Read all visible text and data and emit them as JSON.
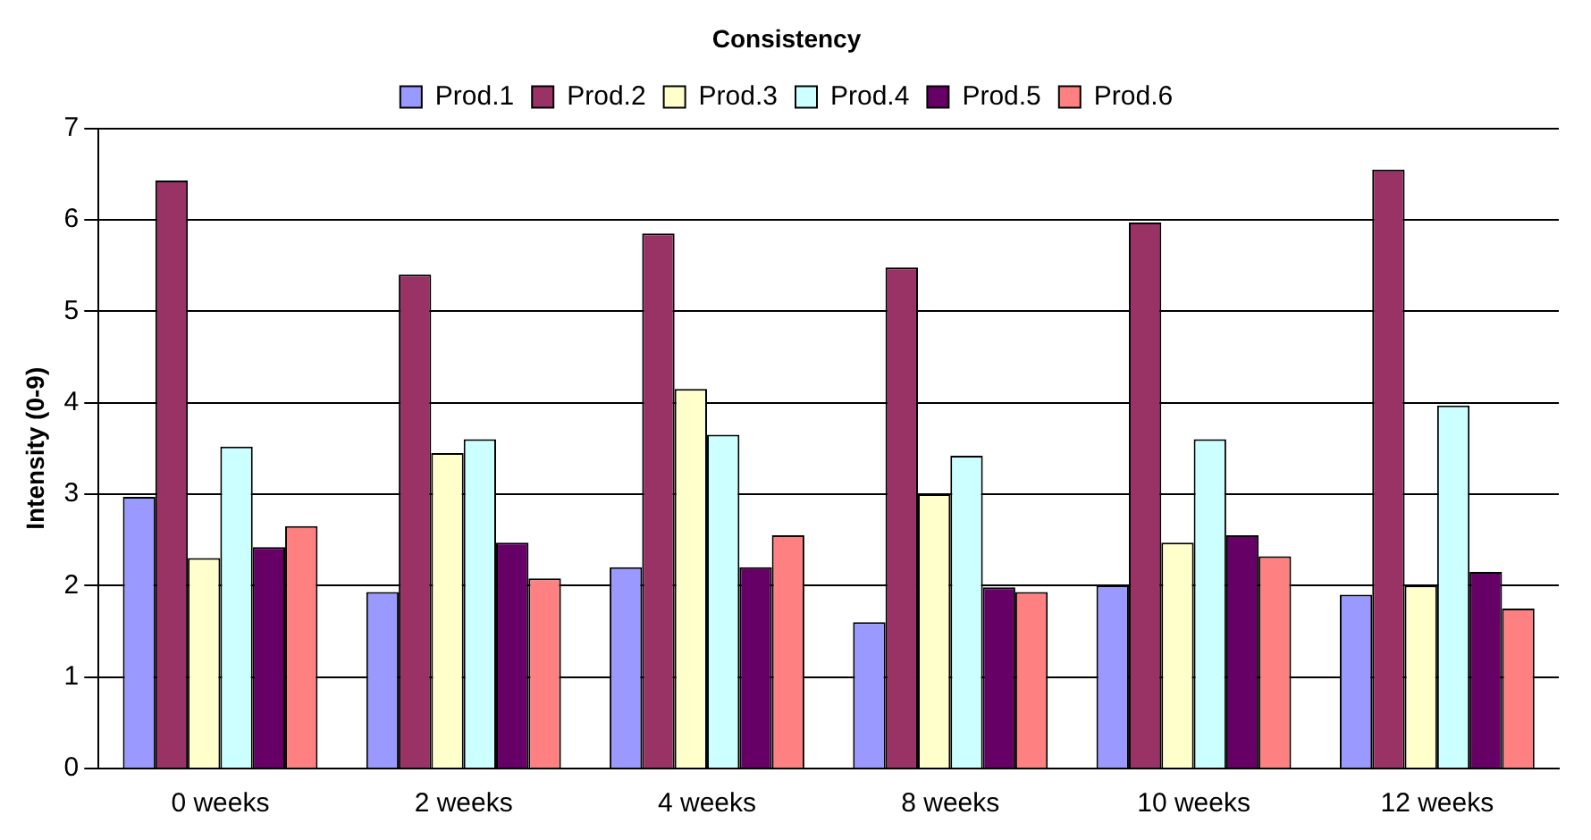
{
  "chart_data": {
    "type": "bar",
    "title": "Consistency",
    "ylabel": "Intensity (0-9)",
    "categories": [
      "0 weeks",
      "2 weeks",
      "4 weeks",
      "8 weeks",
      "10 weeks",
      "12 weeks"
    ],
    "series": [
      {
        "name": "Prod.1",
        "color": "#9999ff",
        "values": [
          2.97,
          1.93,
          2.2,
          1.6,
          2.0,
          1.9
        ]
      },
      {
        "name": "Prod.2",
        "color": "#993366",
        "values": [
          6.43,
          5.4,
          5.85,
          5.48,
          5.97,
          6.55
        ]
      },
      {
        "name": "Prod.3",
        "color": "#ffffcc",
        "values": [
          2.3,
          3.45,
          4.15,
          3.0,
          2.47,
          2.0
        ]
      },
      {
        "name": "Prod.4",
        "color": "#ccffff",
        "values": [
          3.52,
          3.6,
          3.65,
          3.42,
          3.6,
          3.97
        ]
      },
      {
        "name": "Prod.5",
        "color": "#660066",
        "values": [
          2.42,
          2.47,
          2.2,
          1.98,
          2.55,
          2.15
        ]
      },
      {
        "name": "Prod.6",
        "color": "#ff8080",
        "values": [
          2.65,
          2.08,
          2.55,
          1.93,
          2.32,
          1.75
        ]
      }
    ],
    "ylim": [
      0,
      7
    ],
    "yticks": [
      0,
      1,
      2,
      3,
      4,
      5,
      6,
      7
    ],
    "grid": "y",
    "legend": "top"
  }
}
